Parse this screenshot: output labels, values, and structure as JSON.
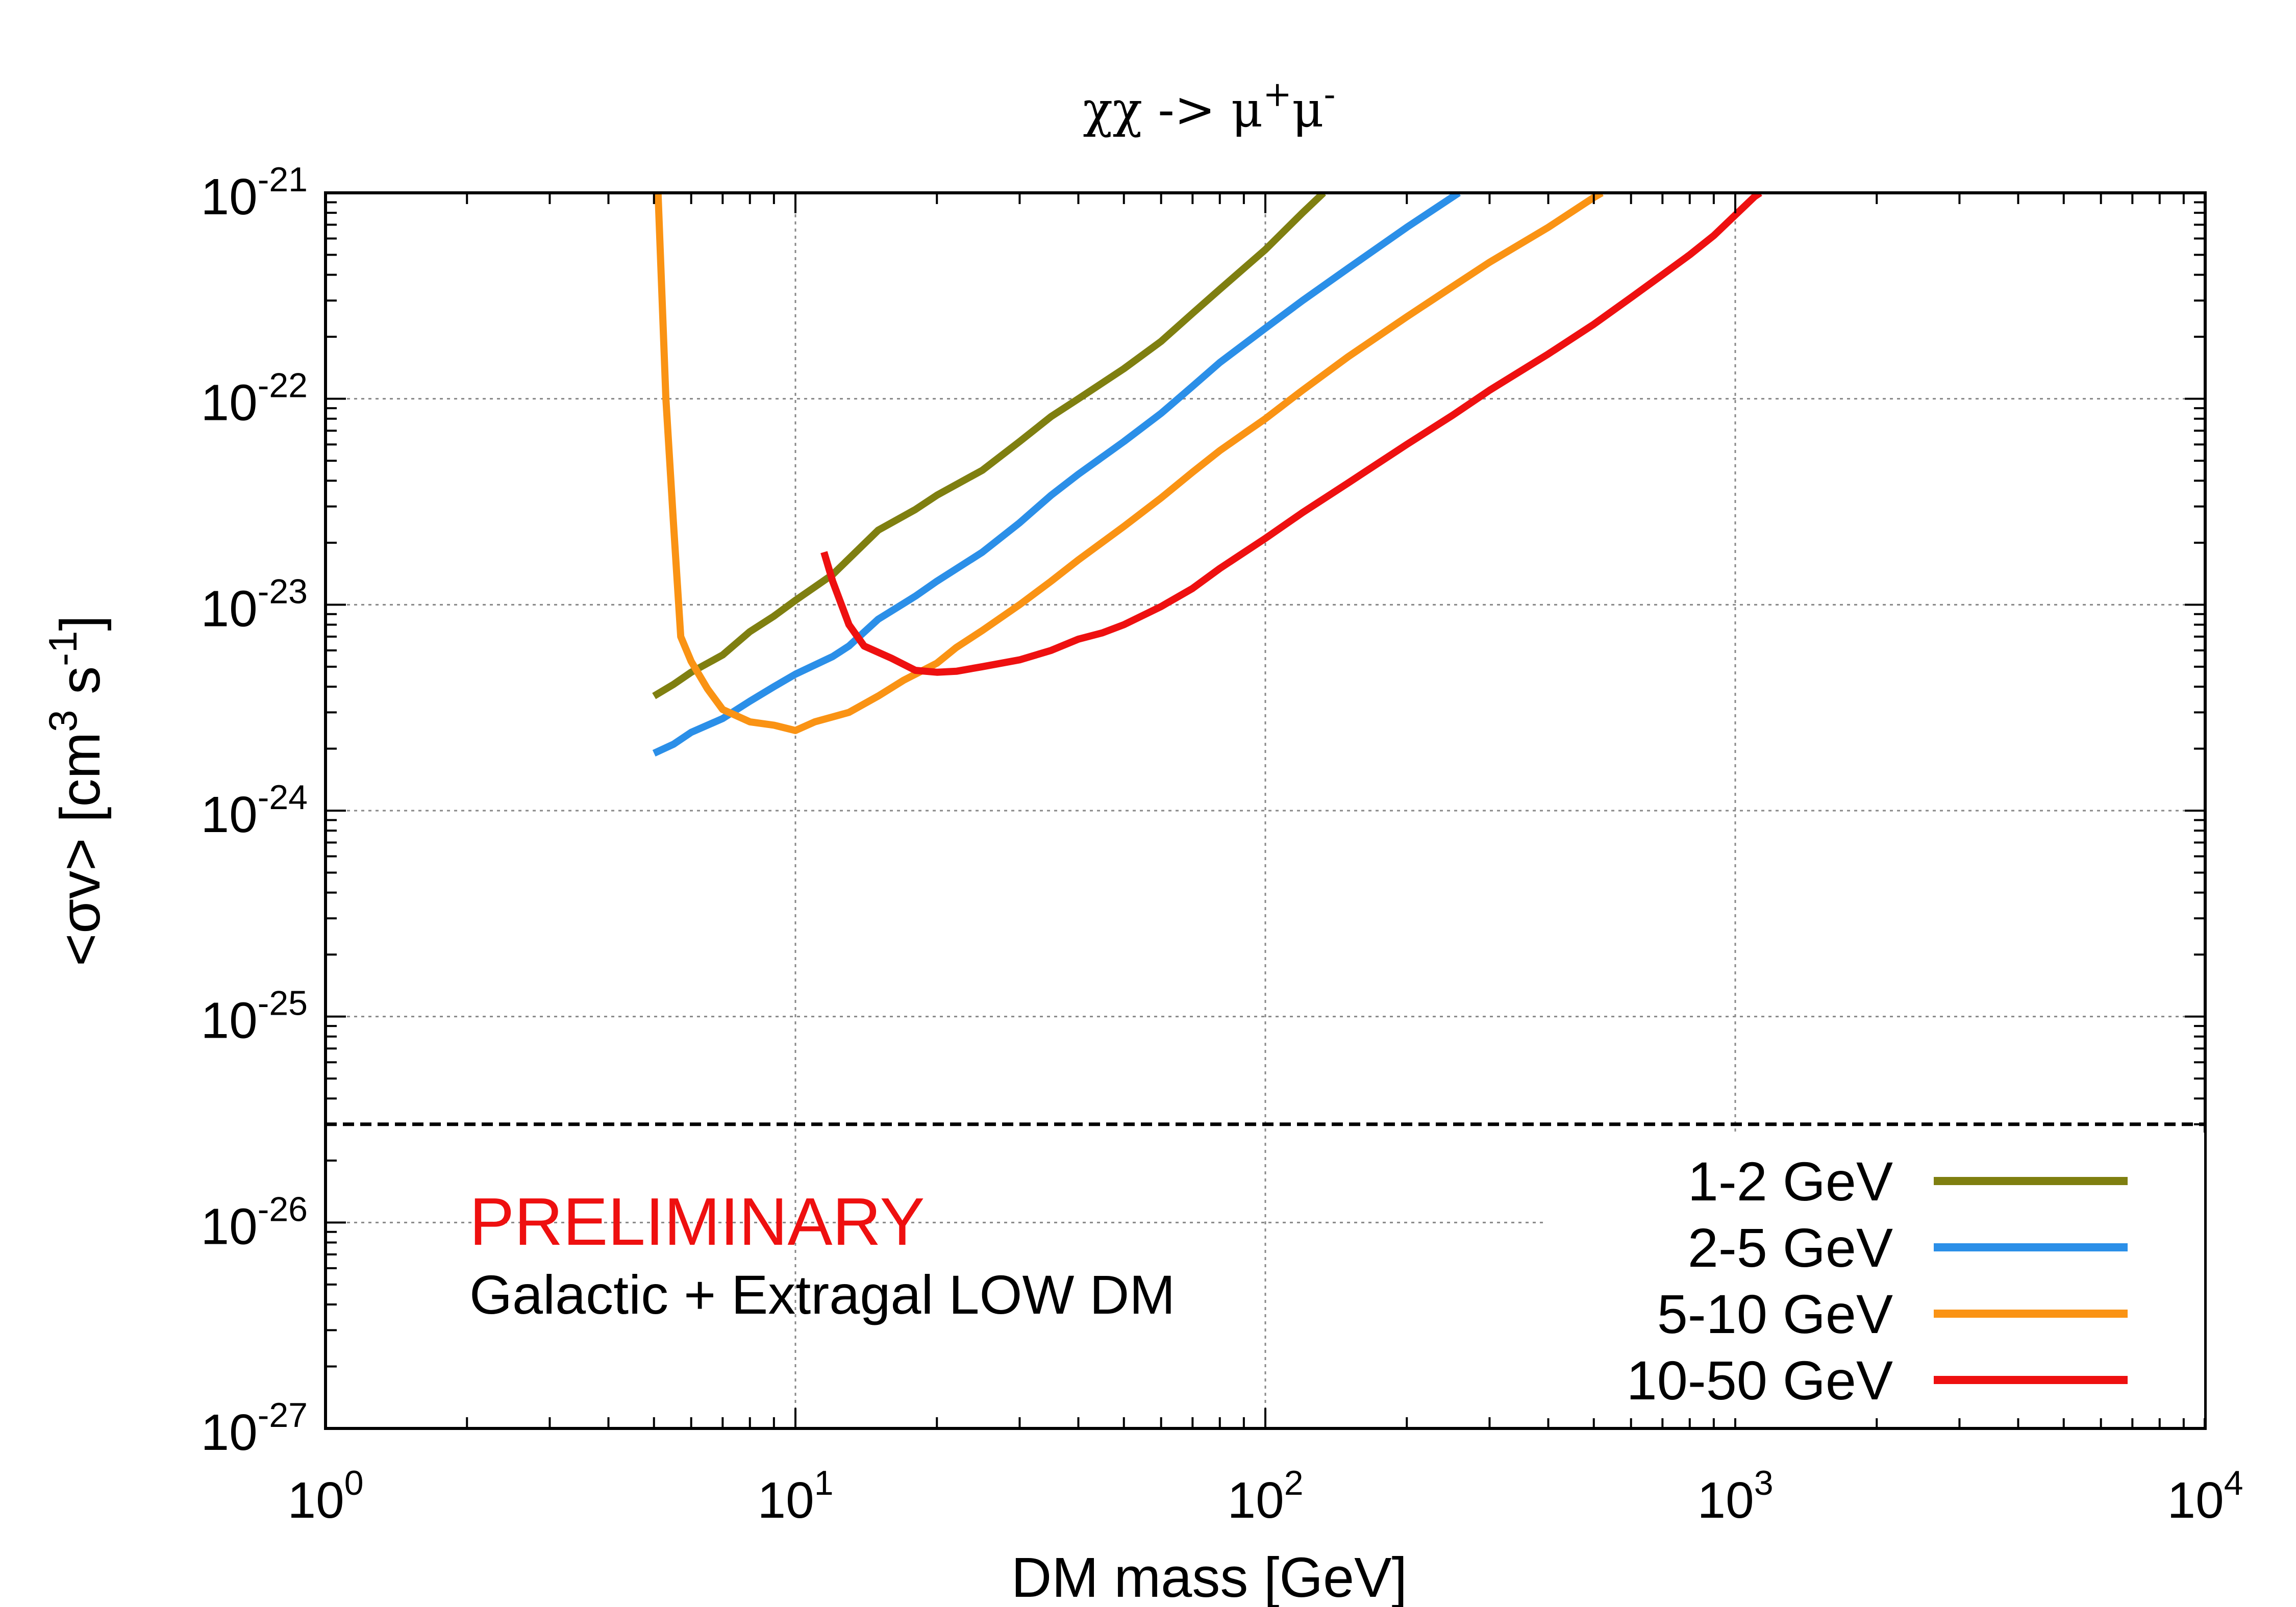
{
  "chart_data": {
    "type": "line",
    "title": "χχ -> μ⁺μ⁻",
    "title_parts": {
      "base": "χχ -> μ",
      "sup1": "+",
      "mid": "μ",
      "sup2": "-"
    },
    "xlabel": "DM mass [GeV]",
    "ylabel_parts": {
      "base": "<σv> [cm",
      "sup1": "3",
      "mid": " s",
      "sup2": "-1",
      "end": "]"
    },
    "x_scale": "log",
    "y_scale": "log",
    "xlim": [
      1,
      10000
    ],
    "ylim": [
      1e-27,
      1e-21
    ],
    "x_ticks": [
      {
        "base": "10",
        "exp": "0",
        "value": 1
      },
      {
        "base": "10",
        "exp": "1",
        "value": 10
      },
      {
        "base": "10",
        "exp": "2",
        "value": 100
      },
      {
        "base": "10",
        "exp": "3",
        "value": 1000
      },
      {
        "base": "10",
        "exp": "4",
        "value": 10000
      }
    ],
    "y_ticks": [
      {
        "base": "10",
        "exp": "-21",
        "value": 1e-21
      },
      {
        "base": "10",
        "exp": "-22",
        "value": 1e-22
      },
      {
        "base": "10",
        "exp": "-23",
        "value": 1e-23
      },
      {
        "base": "10",
        "exp": "-24",
        "value": 1e-24
      },
      {
        "base": "10",
        "exp": "-25",
        "value": 1e-25
      },
      {
        "base": "10",
        "exp": "-26",
        "value": 1e-26
      },
      {
        "base": "10",
        "exp": "-27",
        "value": 1e-27
      }
    ],
    "grid": true,
    "reference_line": {
      "y": 3e-26,
      "style": "dashed",
      "color": "#000000"
    },
    "series": [
      {
        "name": "1-2 GeV",
        "color": "#7f7f10",
        "points": [
          [
            5,
            3.6e-24
          ],
          [
            5.5,
            4.1e-24
          ],
          [
            6,
            4.7e-24
          ],
          [
            7,
            5.7e-24
          ],
          [
            8,
            7.4e-24
          ],
          [
            9,
            8.8e-24
          ],
          [
            10,
            1.05e-23
          ],
          [
            12,
            1.4e-23
          ],
          [
            15,
            2.3e-23
          ],
          [
            18,
            2.9e-23
          ],
          [
            20,
            3.4e-23
          ],
          [
            25,
            4.5e-23
          ],
          [
            30,
            6.2e-23
          ],
          [
            35,
            8.2e-23
          ],
          [
            40,
            1e-22
          ],
          [
            50,
            1.4e-22
          ],
          [
            60,
            1.9e-22
          ],
          [
            70,
            2.6e-22
          ],
          [
            80,
            3.4e-22
          ],
          [
            100,
            5.3e-22
          ],
          [
            120,
            8e-22
          ],
          [
            133,
            1e-21
          ]
        ]
      },
      {
        "name": "2-5 GeV",
        "color": "#2b8fe8",
        "points": [
          [
            5,
            1.9e-24
          ],
          [
            5.5,
            2.1e-24
          ],
          [
            6,
            2.4e-24
          ],
          [
            7,
            2.8e-24
          ],
          [
            8,
            3.4e-24
          ],
          [
            9,
            4e-24
          ],
          [
            10,
            4.6e-24
          ],
          [
            12,
            5.6e-24
          ],
          [
            13,
            6.3e-24
          ],
          [
            15,
            8.5e-24
          ],
          [
            18,
            1.1e-23
          ],
          [
            20,
            1.3e-23
          ],
          [
            25,
            1.8e-23
          ],
          [
            30,
            2.5e-23
          ],
          [
            35,
            3.4e-23
          ],
          [
            40,
            4.3e-23
          ],
          [
            50,
            6.2e-23
          ],
          [
            60,
            8.5e-23
          ],
          [
            70,
            1.15e-22
          ],
          [
            80,
            1.5e-22
          ],
          [
            100,
            2.2e-22
          ],
          [
            120,
            3e-22
          ],
          [
            150,
            4.3e-22
          ],
          [
            200,
            6.8e-22
          ],
          [
            258,
            1e-21
          ]
        ]
      },
      {
        "name": "5-10 GeV",
        "color": "#fa9314",
        "points": [
          [
            5.1,
            1e-21
          ],
          [
            5.3,
            1e-22
          ],
          [
            5.5,
            2.5e-23
          ],
          [
            5.7,
            7e-24
          ],
          [
            6,
            5.3e-24
          ],
          [
            6.5,
            3.9e-24
          ],
          [
            7,
            3.1e-24
          ],
          [
            8,
            2.7e-24
          ],
          [
            9,
            2.6e-24
          ],
          [
            10,
            2.45e-24
          ],
          [
            11,
            2.7e-24
          ],
          [
            13,
            3e-24
          ],
          [
            15,
            3.6e-24
          ],
          [
            17,
            4.3e-24
          ],
          [
            20,
            5.2e-24
          ],
          [
            22,
            6.2e-24
          ],
          [
            25,
            7.5e-24
          ],
          [
            30,
            1e-23
          ],
          [
            35,
            1.3e-23
          ],
          [
            40,
            1.65e-23
          ],
          [
            50,
            2.4e-23
          ],
          [
            60,
            3.3e-23
          ],
          [
            70,
            4.4e-23
          ],
          [
            80,
            5.6e-23
          ],
          [
            100,
            8e-23
          ],
          [
            120,
            1.1e-22
          ],
          [
            150,
            1.6e-22
          ],
          [
            200,
            2.5e-22
          ],
          [
            250,
            3.5e-22
          ],
          [
            300,
            4.6e-22
          ],
          [
            400,
            6.8e-22
          ],
          [
            500,
            9.5e-22
          ],
          [
            520,
            1e-21
          ]
        ]
      },
      {
        "name": "10-50 GeV",
        "color": "#ee1010",
        "points": [
          [
            11.5,
            1.8e-23
          ],
          [
            12,
            1.3e-23
          ],
          [
            13,
            8e-24
          ],
          [
            14,
            6.3e-24
          ],
          [
            16,
            5.5e-24
          ],
          [
            18,
            4.8e-24
          ],
          [
            20,
            4.7e-24
          ],
          [
            22,
            4.75e-24
          ],
          [
            25,
            5e-24
          ],
          [
            30,
            5.4e-24
          ],
          [
            35,
            6e-24
          ],
          [
            40,
            6.8e-24
          ],
          [
            45,
            7.3e-24
          ],
          [
            50,
            8e-24
          ],
          [
            60,
            9.8e-24
          ],
          [
            70,
            1.2e-23
          ],
          [
            80,
            1.5e-23
          ],
          [
            100,
            2.1e-23
          ],
          [
            120,
            2.8e-23
          ],
          [
            150,
            3.9e-23
          ],
          [
            200,
            6e-23
          ],
          [
            250,
            8.3e-23
          ],
          [
            300,
            1.1e-22
          ],
          [
            400,
            1.65e-22
          ],
          [
            500,
            2.3e-22
          ],
          [
            600,
            3.1e-22
          ],
          [
            700,
            4e-22
          ],
          [
            800,
            5e-22
          ],
          [
            900,
            6.2e-22
          ],
          [
            1000,
            7.8e-22
          ],
          [
            1100,
            9.6e-22
          ],
          [
            1130,
            1e-21
          ]
        ]
      }
    ],
    "annotations": {
      "preliminary": "PRELIMINARY",
      "preliminary_color": "#ee1010",
      "dataset": "Galactic + Extragal LOW DM"
    },
    "legend_position": "bottom-right"
  }
}
